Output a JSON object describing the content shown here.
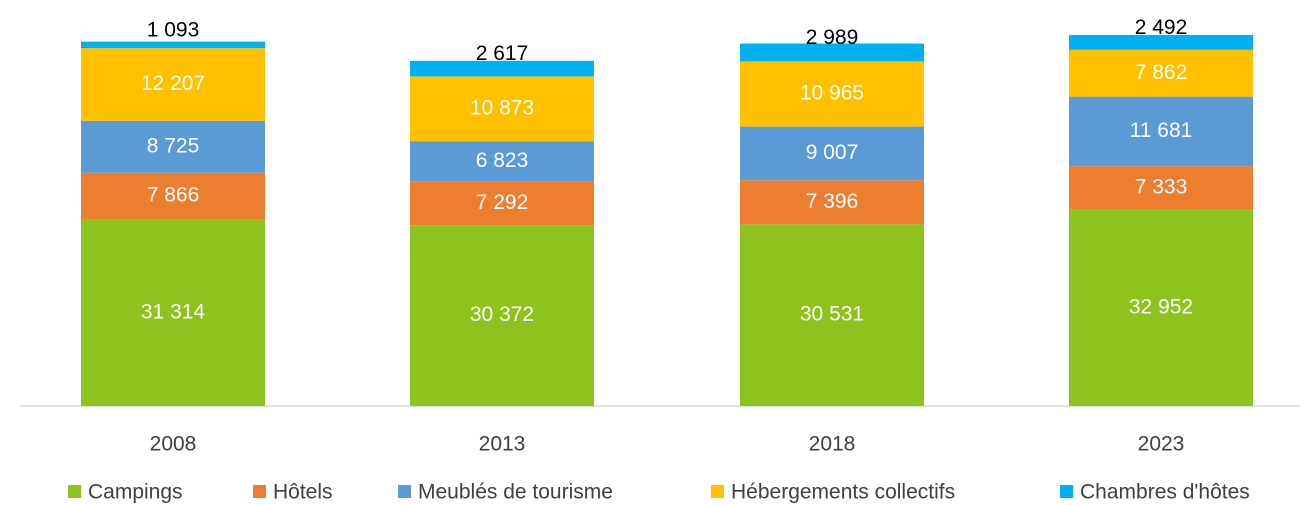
{
  "chart_data": {
    "type": "stacked_bar",
    "categories": [
      "2008",
      "2013",
      "2018",
      "2023"
    ],
    "series": [
      {
        "name": "Campings",
        "color": "#8dc21f",
        "values": [
          31314,
          30372,
          30531,
          32952
        ],
        "value_labels": [
          "31 314",
          "30 372",
          "30 531",
          "32 952"
        ]
      },
      {
        "name": "Hôtels",
        "color": "#ed7d31",
        "values": [
          7866,
          7292,
          7396,
          7333
        ],
        "value_labels": [
          "7 866",
          "7 292",
          "7 396",
          "7 333"
        ]
      },
      {
        "name": "Meublés de tourisme",
        "color": "#5b9bd5",
        "values": [
          8725,
          6823,
          9007,
          11681
        ],
        "value_labels": [
          "8 725",
          "6 823",
          "9 007",
          "11 681"
        ]
      },
      {
        "name": "Hébergements collectifs",
        "color": "#ffc000",
        "values": [
          12207,
          10873,
          10965,
          7862
        ],
        "value_labels": [
          "12 207",
          "10 873",
          "10 965",
          "7 862"
        ]
      },
      {
        "name": "Chambres d'hôtes",
        "color": "#00b0f0",
        "values": [
          1093,
          2617,
          2989,
          2492
        ],
        "value_labels": [
          "1 093",
          "2 617",
          "2 989",
          "2 492"
        ]
      }
    ]
  }
}
